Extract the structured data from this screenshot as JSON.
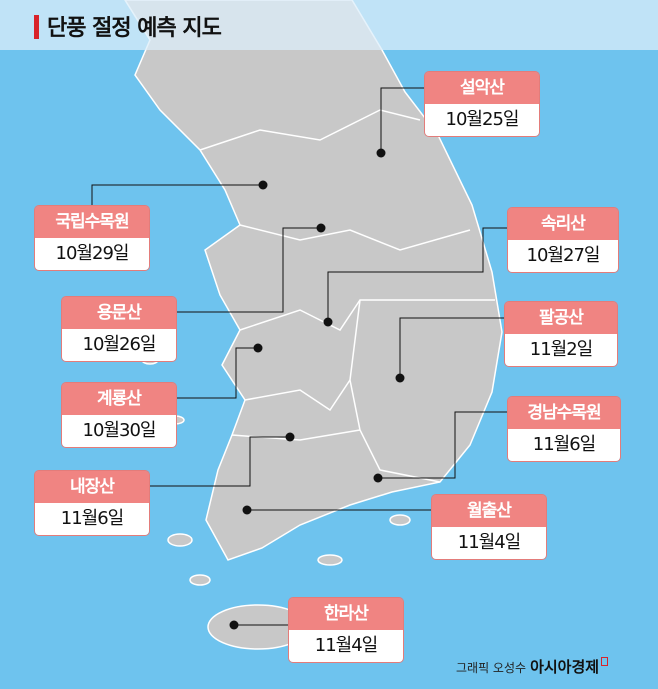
{
  "title": "단풍 절정 예측 지도",
  "colors": {
    "sea": "#6ec3ee",
    "land": "#c8c8c8",
    "label_header": "#f08482",
    "accent": "#d8232a"
  },
  "locations": [
    {
      "name": "설악산",
      "date": "10월25일"
    },
    {
      "name": "국립수목원",
      "date": "10월29일"
    },
    {
      "name": "속리산",
      "date": "10월27일"
    },
    {
      "name": "용문산",
      "date": "10월26일"
    },
    {
      "name": "팔공산",
      "date": "11월2일"
    },
    {
      "name": "계룡산",
      "date": "10월30일"
    },
    {
      "name": "경남수목원",
      "date": "11월6일"
    },
    {
      "name": "내장산",
      "date": "11월6일"
    },
    {
      "name": "월출산",
      "date": "11월4일"
    },
    {
      "name": "한라산",
      "date": "11월4일"
    }
  ],
  "credit": {
    "byline": "그래픽 오성수",
    "brand": "아시아경제"
  }
}
